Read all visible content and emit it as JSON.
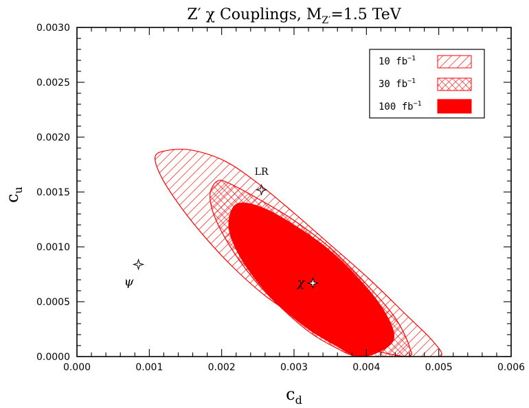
{
  "chart_data": {
    "type": "contour",
    "title": "Z′ χ Couplings, M",
    "title_sub": "Z′",
    "title_tail": "=1.5 TeV",
    "xlabel": "c",
    "xlabel_sub": "d",
    "ylabel": "c",
    "ylabel_sub": "u",
    "xlim": [
      0.0,
      0.006
    ],
    "ylim": [
      0.0,
      0.003
    ],
    "x_ticks": [
      "0.000",
      "0.001",
      "0.002",
      "0.003",
      "0.004",
      "0.005",
      "0.006"
    ],
    "y_ticks": [
      "0.0000",
      "0.0005",
      "0.0010",
      "0.0015",
      "0.0020",
      "0.0025",
      "0.0030"
    ],
    "grid": false,
    "legend_position": "top-right",
    "legend": [
      {
        "label": "10 fb",
        "exp": "−1",
        "fill": "hatch"
      },
      {
        "label": "30 fb",
        "exp": "−1",
        "fill": "crosshatch"
      },
      {
        "label": "100 fb",
        "exp": "−1",
        "fill": "solid"
      }
    ],
    "color": "#ff0000",
    "regions": [
      {
        "name": "10 fb−1",
        "fill": "hatch",
        "outline": [
          [
            0.00126,
            0.00188
          ],
          [
            0.00108,
            0.00182
          ],
          [
            0.00118,
            0.00162
          ],
          [
            0.00145,
            0.00135
          ],
          [
            0.00178,
            0.00108
          ],
          [
            0.00218,
            0.0008
          ],
          [
            0.00263,
            0.00054
          ],
          [
            0.00315,
            0.00032
          ],
          [
            0.00365,
            0.00016
          ],
          [
            0.00415,
            5e-05
          ],
          [
            0.00455,
            0.0
          ],
          [
            0.00502,
            0.0
          ],
          [
            0.00492,
            0.00014
          ],
          [
            0.00455,
            0.00038
          ],
          [
            0.00405,
            0.0007
          ],
          [
            0.0035,
            0.00102
          ],
          [
            0.00298,
            0.00132
          ],
          [
            0.0025,
            0.00158
          ],
          [
            0.00205,
            0.00178
          ],
          [
            0.0016,
            0.00188
          ]
        ]
      },
      {
        "name": "30 fb−1",
        "fill": "crosshatch",
        "outline": [
          [
            0.00194,
            0.0016
          ],
          [
            0.00184,
            0.00148
          ],
          [
            0.0019,
            0.00128
          ],
          [
            0.00212,
            0.001
          ],
          [
            0.00245,
            0.0007
          ],
          [
            0.00283,
            0.00044
          ],
          [
            0.00322,
            0.00022
          ],
          [
            0.00358,
            8e-05
          ],
          [
            0.0039,
            0.0
          ],
          [
            0.00455,
            0.0
          ],
          [
            0.0046,
            8e-05
          ],
          [
            0.0044,
            0.00035
          ],
          [
            0.004,
            0.00066
          ],
          [
            0.0035,
            0.00099
          ],
          [
            0.00298,
            0.00125
          ],
          [
            0.0025,
            0.00144
          ],
          [
            0.0021,
            0.00158
          ]
        ]
      },
      {
        "name": "100 fb−1",
        "fill": "solid",
        "outline": [
          [
            0.0023,
            0.0014
          ],
          [
            0.00215,
            0.00135
          ],
          [
            0.0021,
            0.00118
          ],
          [
            0.0022,
            0.00098
          ],
          [
            0.00245,
            0.00072
          ],
          [
            0.00278,
            0.00048
          ],
          [
            0.00318,
            0.00026
          ],
          [
            0.00358,
            0.0001
          ],
          [
            0.0039,
            0.0
          ],
          [
            0.00425,
            7e-05
          ],
          [
            0.00438,
            0.0002
          ],
          [
            0.0042,
            0.00046
          ],
          [
            0.00385,
            0.00074
          ],
          [
            0.00345,
            0.00099
          ],
          [
            0.00302,
            0.00119
          ],
          [
            0.00262,
            0.00134
          ]
        ]
      }
    ],
    "points": [
      {
        "label": "LR",
        "x": 0.00255,
        "y": 0.00152,
        "label_pos": "above"
      },
      {
        "label": "χ",
        "x": 0.00326,
        "y": 0.00067,
        "label_pos": "left"
      },
      {
        "label": "ψ",
        "x": 0.00085,
        "y": 0.00084,
        "label_pos": "below-left"
      }
    ]
  }
}
